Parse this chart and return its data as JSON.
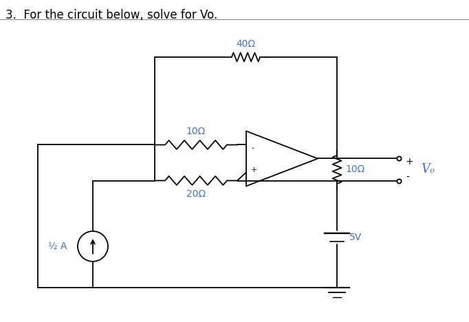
{
  "title": "3.  For the circuit below, solve for Vo.",
  "title_fontsize": 12,
  "line_color": "black",
  "text_color": "black",
  "label_color": "#4472c4",
  "resistor_10_label": "10Ω",
  "resistor_40_label": "40Ω",
  "resistor_20_label": "20Ω",
  "resistor_10b_label": "10Ω",
  "current_source_label": "½ A",
  "voltage_source_label": "5V",
  "vo_label": "Vₒ",
  "plus_label": "+",
  "minus_label": "-",
  "opamp_plus": "+",
  "opamp_minus": "-"
}
